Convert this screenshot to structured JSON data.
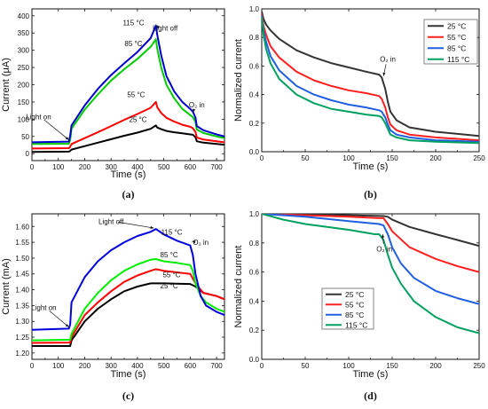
{
  "chart_data": [
    {
      "id": "a",
      "type": "line",
      "panel_label": "(a)",
      "xlabel": "Time (s)",
      "ylabel": "Current (μA)",
      "xlim": [
        0,
        730
      ],
      "ylim": [
        -20,
        420
      ],
      "xticks": [
        0,
        100,
        200,
        300,
        400,
        500,
        600,
        700
      ],
      "yticks": [
        0,
        50,
        100,
        150,
        200,
        250,
        300,
        350,
        400
      ],
      "grid": false,
      "series": [
        {
          "name": "25 °C",
          "color": "#000000",
          "stroke_width": 2.0,
          "x": [
            0,
            140,
            145,
            150,
            200,
            250,
            300,
            350,
            400,
            450,
            470,
            475,
            490,
            510,
            540,
            570,
            600,
            610,
            620,
            625,
            650,
            700,
            730
          ],
          "y": [
            5,
            6,
            8,
            12,
            22,
            32,
            42,
            52,
            61,
            72,
            82,
            76,
            71,
            66,
            62,
            59,
            56,
            55,
            48,
            36,
            32,
            28,
            26
          ]
        },
        {
          "name": "55 °C",
          "color": "#ff0000",
          "stroke_width": 2.0,
          "x": [
            0,
            140,
            145,
            150,
            200,
            250,
            300,
            350,
            400,
            450,
            470,
            475,
            490,
            510,
            540,
            570,
            600,
            610,
            620,
            625,
            650,
            700,
            730
          ],
          "y": [
            15,
            16,
            20,
            28,
            45,
            62,
            80,
            98,
            115,
            133,
            150,
            135,
            118,
            104,
            93,
            84,
            78,
            74,
            63,
            47,
            41,
            36,
            33
          ]
        },
        {
          "name": "85 °C",
          "color": "#00cc00",
          "stroke_width": 2.0,
          "x": [
            0,
            140,
            145,
            150,
            200,
            250,
            300,
            350,
            400,
            450,
            470,
            475,
            490,
            510,
            540,
            570,
            600,
            610,
            620,
            625,
            650,
            700,
            730
          ],
          "y": [
            28,
            29,
            40,
            72,
            128,
            172,
            212,
            245,
            275,
            310,
            332,
            305,
            250,
            200,
            160,
            130,
            112,
            106,
            92,
            70,
            60,
            50,
            45
          ]
        },
        {
          "name": "115 °C",
          "color": "#0000cc",
          "stroke_width": 2.0,
          "x": [
            0,
            140,
            145,
            150,
            200,
            250,
            300,
            350,
            400,
            450,
            470,
            475,
            490,
            510,
            540,
            570,
            600,
            610,
            620,
            625,
            650,
            700,
            730
          ],
          "y": [
            33,
            35,
            52,
            82,
            140,
            188,
            228,
            262,
            295,
            335,
            372,
            345,
            285,
            225,
            180,
            150,
            130,
            122,
            105,
            80,
            68,
            56,
            50
          ]
        }
      ],
      "annotations": [
        {
          "text": "115 °C",
          "x": 385,
          "y": 372
        },
        {
          "text": "85 °C",
          "x": 385,
          "y": 312
        },
        {
          "text": "55 °C",
          "x": 395,
          "y": 164
        },
        {
          "text": "25 °C",
          "x": 402,
          "y": 92
        },
        {
          "text": "Light off",
          "x": 505,
          "y": 357,
          "arrow_to": [
            470,
            370
          ]
        },
        {
          "text": "Light on",
          "x": 25,
          "y": 100,
          "arrow_to": [
            140,
            40
          ]
        },
        {
          "text": "O₂ in",
          "x": 625,
          "y": 135,
          "arrow_to": [
            612,
            120
          ]
        }
      ]
    },
    {
      "id": "b",
      "type": "line",
      "panel_label": "(b)",
      "xlabel": "Time (s)",
      "ylabel": "Normalized current",
      "xlim": [
        0,
        250
      ],
      "ylim": [
        0,
        1.0
      ],
      "xticks": [
        0,
        50,
        100,
        150,
        200,
        250
      ],
      "yticks": [
        0.0,
        0.2,
        0.4,
        0.6,
        0.8,
        1.0
      ],
      "yticklabels": [
        "0.0",
        "0.2",
        "0.4",
        "0.6",
        "0.8",
        "1.0"
      ],
      "grid": false,
      "legend": {
        "position": "top-right"
      },
      "series": [
        {
          "name": "25 °C",
          "color": "#333333",
          "stroke_width": 2.0,
          "x": [
            0,
            2,
            5,
            10,
            20,
            40,
            60,
            80,
            100,
            120,
            135,
            138,
            142,
            145,
            148,
            155,
            170,
            200,
            250
          ],
          "y": [
            0.98,
            0.93,
            0.89,
            0.85,
            0.79,
            0.71,
            0.66,
            0.62,
            0.59,
            0.56,
            0.54,
            0.52,
            0.44,
            0.35,
            0.28,
            0.22,
            0.17,
            0.14,
            0.11
          ]
        },
        {
          "name": "55 °C",
          "color": "#ff2020",
          "stroke_width": 2.0,
          "x": [
            0,
            2,
            5,
            10,
            20,
            40,
            60,
            80,
            100,
            120,
            135,
            138,
            142,
            145,
            148,
            155,
            170,
            200,
            250
          ],
          "y": [
            0.96,
            0.88,
            0.82,
            0.74,
            0.66,
            0.56,
            0.5,
            0.46,
            0.43,
            0.41,
            0.39,
            0.37,
            0.31,
            0.24,
            0.19,
            0.15,
            0.12,
            0.1,
            0.08
          ]
        },
        {
          "name": "85 °C",
          "color": "#1f5fe0",
          "stroke_width": 2.0,
          "x": [
            0,
            2,
            5,
            10,
            20,
            40,
            60,
            80,
            100,
            120,
            135,
            138,
            142,
            145,
            148,
            155,
            170,
            200,
            250
          ],
          "y": [
            0.95,
            0.85,
            0.77,
            0.67,
            0.57,
            0.46,
            0.4,
            0.36,
            0.33,
            0.31,
            0.29,
            0.28,
            0.24,
            0.19,
            0.15,
            0.12,
            0.1,
            0.08,
            0.07
          ]
        },
        {
          "name": "115 °C",
          "color": "#00a060",
          "stroke_width": 2.0,
          "x": [
            0,
            2,
            5,
            10,
            20,
            40,
            60,
            80,
            100,
            120,
            135,
            138,
            142,
            145,
            148,
            155,
            170,
            200,
            250
          ],
          "y": [
            0.94,
            0.82,
            0.72,
            0.62,
            0.51,
            0.4,
            0.34,
            0.3,
            0.28,
            0.26,
            0.25,
            0.24,
            0.2,
            0.16,
            0.12,
            0.1,
            0.08,
            0.07,
            0.06
          ]
        }
      ],
      "annotations": [
        {
          "text": "O₂ in",
          "x": 145,
          "y": 0.63,
          "arrow_to": [
            140,
            0.53
          ]
        }
      ]
    },
    {
      "id": "c",
      "type": "line",
      "panel_label": "(c)",
      "xlabel": "Time (s)",
      "ylabel": "Current (mA)",
      "xlim": [
        0,
        730
      ],
      "ylim": [
        1.18,
        1.64
      ],
      "xticks": [
        0,
        100,
        200,
        300,
        400,
        500,
        600,
        700
      ],
      "yticks": [
        1.2,
        1.25,
        1.3,
        1.35,
        1.4,
        1.45,
        1.5,
        1.55,
        1.6
      ],
      "yticklabels": [
        "1.20",
        "1.25",
        "1.30",
        "1.35",
        "1.40",
        "1.45",
        "1.50",
        "1.55",
        "1.60"
      ],
      "grid": false,
      "series": [
        {
          "name": "25 °C",
          "color": "#000000",
          "stroke_width": 2.0,
          "x": [
            0,
            145,
            150,
            200,
            250,
            300,
            350,
            400,
            450,
            470,
            500,
            550,
            600,
            620,
            650,
            700,
            730
          ],
          "y": [
            1.222,
            1.222,
            1.24,
            1.3,
            1.34,
            1.37,
            1.395,
            1.41,
            1.42,
            1.42,
            1.42,
            1.419,
            1.418,
            1.41,
            1.39,
            1.38,
            1.37
          ]
        },
        {
          "name": "55 °C",
          "color": "#ff0000",
          "stroke_width": 2.0,
          "x": [
            0,
            145,
            150,
            200,
            250,
            300,
            350,
            400,
            450,
            470,
            500,
            550,
            600,
            620,
            650,
            700,
            730
          ],
          "y": [
            1.232,
            1.233,
            1.25,
            1.32,
            1.36,
            1.395,
            1.425,
            1.445,
            1.46,
            1.465,
            1.46,
            1.455,
            1.45,
            1.42,
            1.39,
            1.38,
            1.37
          ]
        },
        {
          "name": "85 °C",
          "color": "#00ee00",
          "stroke_width": 2.0,
          "x": [
            0,
            145,
            150,
            200,
            250,
            300,
            350,
            400,
            450,
            470,
            500,
            550,
            600,
            610,
            620,
            640,
            660,
            700,
            730
          ],
          "y": [
            1.24,
            1.242,
            1.26,
            1.34,
            1.39,
            1.43,
            1.46,
            1.48,
            1.495,
            1.497,
            1.49,
            1.485,
            1.478,
            1.46,
            1.42,
            1.38,
            1.36,
            1.34,
            1.33
          ]
        },
        {
          "name": "115 °C",
          "color": "#0000dd",
          "stroke_width": 2.0,
          "x": [
            0,
            140,
            145,
            150,
            200,
            250,
            300,
            350,
            400,
            450,
            470,
            500,
            550,
            600,
            610,
            620,
            640,
            660,
            700,
            730
          ],
          "y": [
            1.273,
            1.277,
            1.29,
            1.36,
            1.44,
            1.49,
            1.525,
            1.55,
            1.57,
            1.583,
            1.592,
            1.575,
            1.555,
            1.54,
            1.51,
            1.45,
            1.38,
            1.35,
            1.33,
            1.32
          ]
        }
      ],
      "annotations": [
        {
          "text": "Light off",
          "x": 300,
          "y": 1.608,
          "arrow_to": [
            462,
            1.595
          ]
        },
        {
          "text": "115 °C",
          "x": 530,
          "y": 1.574
        },
        {
          "text": "O₂ in",
          "x": 640,
          "y": 1.542,
          "arrow_to": [
            607,
            1.553
          ]
        },
        {
          "text": "85 °C",
          "x": 520,
          "y": 1.503
        },
        {
          "text": "55 °C",
          "x": 530,
          "y": 1.44
        },
        {
          "text": "25 °C",
          "x": 520,
          "y": 1.404
        },
        {
          "text": "Light on",
          "x": 45,
          "y": 1.335,
          "arrow_to": [
            140,
            1.282
          ]
        }
      ]
    },
    {
      "id": "d",
      "type": "line",
      "panel_label": "(d)",
      "xlabel": "Time (s)",
      "ylabel": "Normalized current",
      "xlim": [
        0,
        250
      ],
      "ylim": [
        0,
        1.0
      ],
      "xticks": [
        0,
        50,
        100,
        150,
        200,
        250
      ],
      "yticks": [
        0.0,
        0.2,
        0.4,
        0.6,
        0.8,
        1.0
      ],
      "yticklabels": [
        "0.0",
        "0.2",
        "0.4",
        "0.6",
        "0.8",
        "1.0"
      ],
      "grid": false,
      "legend": {
        "position": "center-left"
      },
      "series": [
        {
          "name": "25 °C",
          "color": "#333333",
          "stroke_width": 2.0,
          "x": [
            0,
            50,
            100,
            140,
            145,
            150,
            170,
            200,
            225,
            250
          ],
          "y": [
            1.0,
            0.995,
            0.99,
            0.985,
            0.98,
            0.96,
            0.91,
            0.86,
            0.82,
            0.78
          ]
        },
        {
          "name": "55 °C",
          "color": "#ff2020",
          "stroke_width": 2.0,
          "x": [
            0,
            50,
            100,
            135,
            140,
            145,
            150,
            170,
            200,
            225,
            250
          ],
          "y": [
            1.0,
            0.99,
            0.98,
            0.97,
            0.97,
            0.93,
            0.88,
            0.77,
            0.69,
            0.64,
            0.6
          ]
        },
        {
          "name": "85 °C",
          "color": "#1f5fe0",
          "stroke_width": 2.0,
          "x": [
            0,
            50,
            100,
            135,
            140,
            145,
            150,
            160,
            175,
            200,
            225,
            250
          ],
          "y": [
            1.0,
            0.98,
            0.95,
            0.93,
            0.92,
            0.86,
            0.77,
            0.66,
            0.56,
            0.47,
            0.42,
            0.38
          ]
        },
        {
          "name": "115 °C",
          "color": "#00a060",
          "stroke_width": 2.0,
          "x": [
            0,
            25,
            50,
            75,
            100,
            130,
            135,
            140,
            145,
            150,
            160,
            175,
            200,
            225,
            250
          ],
          "y": [
            1.0,
            0.96,
            0.93,
            0.91,
            0.89,
            0.86,
            0.86,
            0.82,
            0.72,
            0.63,
            0.52,
            0.4,
            0.29,
            0.22,
            0.18
          ]
        }
      ],
      "annotations": [
        {
          "text": "O₂ in",
          "x": 141,
          "y": 0.74,
          "arrow_to": [
            139,
            0.86
          ]
        }
      ]
    }
  ]
}
